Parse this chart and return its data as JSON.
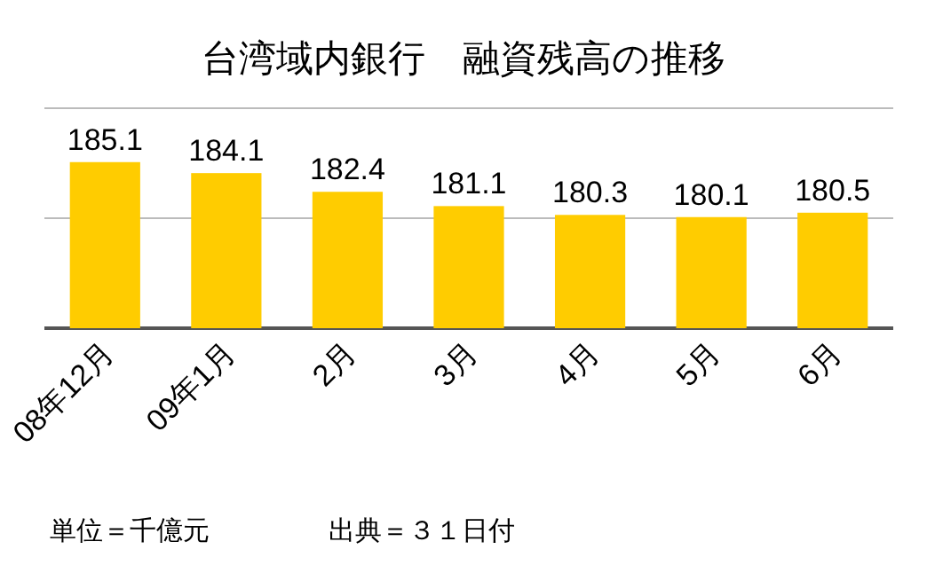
{
  "chart_data": {
    "type": "bar",
    "title": "台湾域内銀行　融資残高の推移",
    "categories": [
      "08年12月",
      "09年1月",
      "2月",
      "3月",
      "4月",
      "5月",
      "6月"
    ],
    "values": [
      185.1,
      184.1,
      182.4,
      181.1,
      180.3,
      180.1,
      180.5
    ],
    "color": "#ffcc00",
    "ylim": [
      170,
      190
    ],
    "ref_lines": [
      {
        "axis": "y",
        "value": 180,
        "label": null,
        "color": "#bbbbbb"
      },
      {
        "axis": "y",
        "value": 190,
        "label": null,
        "color": "#bbbbbb"
      }
    ],
    "data_labels": true,
    "tick_labels": "x",
    "annotations": [
      "単位＝千億元",
      "出典＝３１日付"
    ]
  }
}
